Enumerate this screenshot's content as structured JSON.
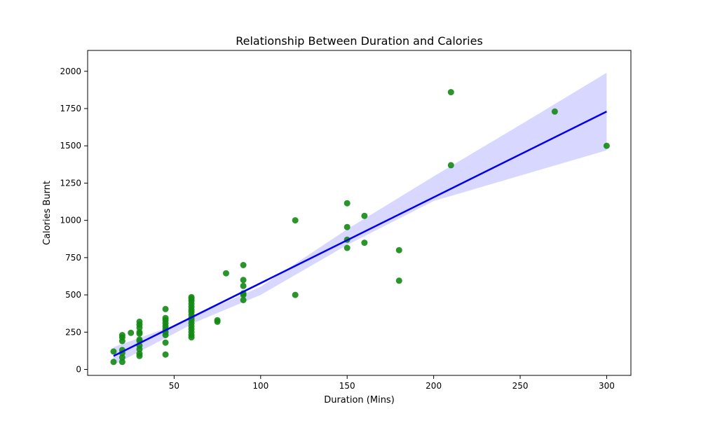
{
  "chart_data": {
    "type": "scatter",
    "title": "Relationship Between Duration and Calories",
    "xlabel": "Duration (Mins)",
    "ylabel": "Calories Burnt",
    "xlim": [
      0,
      314
    ],
    "ylim": [
      -40,
      2140
    ],
    "xticks": [
      50,
      100,
      150,
      200,
      250,
      300
    ],
    "yticks": [
      0,
      250,
      500,
      750,
      1000,
      1250,
      1500,
      1750,
      2000
    ],
    "grid": false,
    "legend": "none",
    "colors": {
      "points": "#138a13",
      "regression_line": "#0000ee",
      "confidence_band": "#d7d7ff"
    },
    "series": [
      {
        "values": [
          [
            15,
            50
          ],
          [
            15,
            120
          ],
          [
            20,
            50
          ],
          [
            20,
            80
          ],
          [
            20,
            110
          ],
          [
            20,
            130
          ],
          [
            20,
            190
          ],
          [
            20,
            215
          ],
          [
            20,
            230
          ],
          [
            25,
            245
          ],
          [
            30,
            90
          ],
          [
            30,
            105
          ],
          [
            30,
            135
          ],
          [
            30,
            160
          ],
          [
            30,
            190
          ],
          [
            30,
            200
          ],
          [
            30,
            240
          ],
          [
            30,
            250
          ],
          [
            30,
            280
          ],
          [
            30,
            300
          ],
          [
            30,
            320
          ],
          [
            45,
            100
          ],
          [
            45,
            180
          ],
          [
            45,
            230
          ],
          [
            45,
            250
          ],
          [
            45,
            270
          ],
          [
            45,
            290
          ],
          [
            45,
            310
          ],
          [
            45,
            330
          ],
          [
            45,
            345
          ],
          [
            45,
            405
          ],
          [
            60,
            215
          ],
          [
            60,
            230
          ],
          [
            60,
            250
          ],
          [
            60,
            270
          ],
          [
            60,
            290
          ],
          [
            60,
            310
          ],
          [
            60,
            330
          ],
          [
            60,
            345
          ],
          [
            60,
            365
          ],
          [
            60,
            385
          ],
          [
            60,
            400
          ],
          [
            60,
            420
          ],
          [
            60,
            440
          ],
          [
            60,
            460
          ],
          [
            60,
            475
          ],
          [
            60,
            485
          ],
          [
            75,
            320
          ],
          [
            75,
            330
          ],
          [
            80,
            645
          ],
          [
            90,
            465
          ],
          [
            90,
            500
          ],
          [
            90,
            510
          ],
          [
            90,
            560
          ],
          [
            90,
            600
          ],
          [
            90,
            700
          ],
          [
            120,
            500
          ],
          [
            120,
            1000
          ],
          [
            150,
            815
          ],
          [
            150,
            870
          ],
          [
            150,
            955
          ],
          [
            150,
            1115
          ],
          [
            160,
            850
          ],
          [
            160,
            1030
          ],
          [
            180,
            595
          ],
          [
            180,
            800
          ],
          [
            210,
            1370
          ],
          [
            210,
            1860
          ],
          [
            270,
            1730
          ],
          [
            300,
            1500
          ]
        ]
      }
    ],
    "regression": {
      "x_range": [
        15,
        300
      ],
      "line": [
        [
          15,
          90
        ],
        [
          300,
          1730
        ]
      ],
      "band_upper": [
        [
          15,
          150
        ],
        [
          50,
          295
        ],
        [
          62,
          360
        ],
        [
          100,
          555
        ],
        [
          150,
          940
        ],
        [
          200,
          1295
        ],
        [
          250,
          1640
        ],
        [
          300,
          1990
        ]
      ],
      "band_lower": [
        [
          15,
          30
        ],
        [
          50,
          240
        ],
        [
          62,
          315
        ],
        [
          100,
          500
        ],
        [
          150,
          835
        ],
        [
          200,
          1130
        ],
        [
          250,
          1300
        ],
        [
          300,
          1470
        ]
      ]
    }
  }
}
